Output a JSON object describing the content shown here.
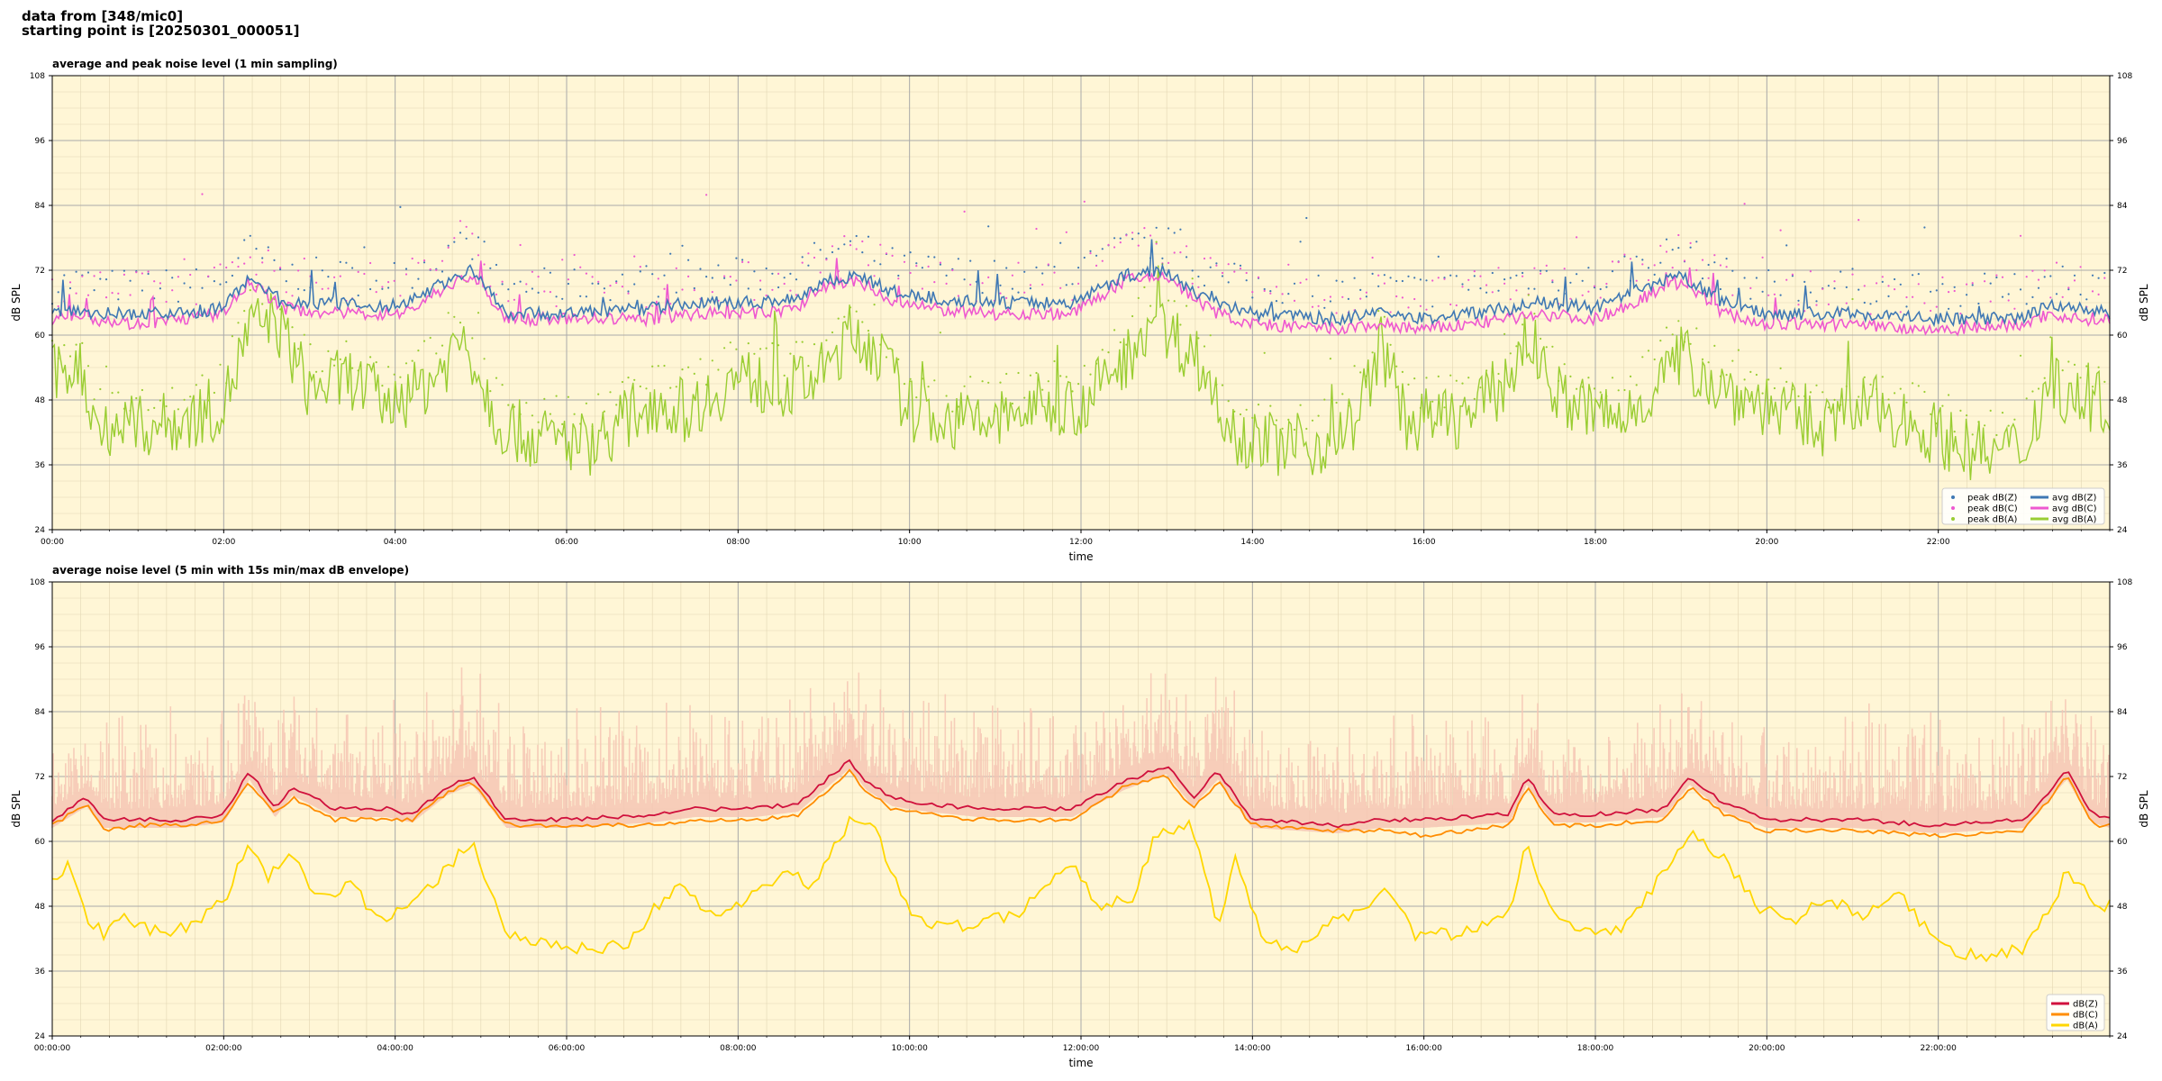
{
  "header": {
    "line1": "data from [348/mic0]",
    "line2": "starting point is [20250301_000051]"
  },
  "colors": {
    "plot_bg": "#fff6d6",
    "zline": "#3f78b4",
    "cline": "#ee58d0",
    "aline": "#9acd32",
    "z5": "#d0103c",
    "c5": "#ff8c00",
    "a5": "#ffd700",
    "envelope": "#f6c5b4"
  },
  "chart_data": [
    {
      "type": "line",
      "title": "average and peak noise level (1 min sampling)",
      "xlabel": "time",
      "ylabel": "dB SPL",
      "ylabel_right": "dB SPL",
      "xlim_hours": [
        0,
        24
      ],
      "ylim": [
        24,
        108
      ],
      "yticks": [
        24,
        36,
        48,
        60,
        72,
        84,
        96,
        108
      ],
      "xtick_labels": [
        "00:00",
        "02:00",
        "04:00",
        "06:00",
        "08:00",
        "10:00",
        "12:00",
        "14:00",
        "16:00",
        "18:00",
        "20:00",
        "22:00"
      ],
      "grid": true,
      "legend_position": "lower-right",
      "legend": [
        "peak dB(Z)",
        "peak dB(C)",
        "peak dB(A)",
        "avg dB(Z)",
        "avg dB(C)",
        "avg dB(A)"
      ],
      "series": [
        {
          "name": "avg dB(Z)",
          "x_hours": [
            0,
            0.3,
            0.5,
            1.0,
            1.5,
            2.0,
            2.3,
            2.7,
            3.3,
            3.8,
            4.1,
            4.6,
            4.9,
            5.3,
            6.0,
            7.0,
            7.5,
            8.2,
            8.7,
            9.0,
            9.4,
            9.8,
            10.2,
            10.8,
            11.5,
            11.9,
            12.5,
            13.0,
            13.3,
            13.6,
            14.0,
            15.0,
            15.5,
            16.0,
            17.0,
            17.3,
            18.0,
            19.0,
            19.5,
            20.0,
            21.0,
            22.0,
            23.0,
            23.3,
            23.6,
            24.0
          ],
          "values": [
            64,
            65,
            64,
            64,
            64,
            65,
            71,
            66,
            66,
            65,
            66,
            70,
            72,
            64,
            64,
            65,
            66,
            66,
            67,
            70,
            71,
            68,
            67,
            66,
            66,
            66,
            71,
            72,
            68,
            66,
            64,
            63,
            64,
            63,
            65,
            66,
            65,
            71,
            66,
            64,
            64,
            63,
            63,
            66,
            65,
            64
          ]
        },
        {
          "name": "avg dB(C)",
          "x_hours": [
            0,
            0.3,
            0.5,
            1.0,
            1.5,
            2.0,
            2.3,
            2.7,
            3.3,
            3.8,
            4.1,
            4.6,
            4.9,
            5.3,
            6.0,
            7.0,
            7.5,
            8.2,
            8.7,
            9.0,
            9.4,
            9.8,
            10.2,
            10.8,
            11.5,
            11.9,
            12.5,
            13.0,
            13.3,
            13.6,
            14.0,
            15.0,
            15.5,
            16.0,
            17.0,
            17.3,
            18.0,
            19.0,
            19.5,
            20.0,
            21.0,
            22.0,
            23.0,
            23.3,
            23.6,
            24.0
          ],
          "values": [
            63,
            64,
            63,
            62,
            63,
            64,
            70,
            65,
            64,
            64,
            64,
            69,
            71,
            63,
            63,
            63,
            64,
            64,
            65,
            69,
            70,
            66,
            65,
            64,
            64,
            64,
            70,
            71,
            67,
            64,
            62,
            61,
            62,
            61,
            63,
            64,
            63,
            70,
            64,
            62,
            62,
            61,
            62,
            64,
            63,
            63
          ]
        },
        {
          "name": "avg dB(A)",
          "x_hours": [
            0,
            0.3,
            0.5,
            1.0,
            1.5,
            2.0,
            2.3,
            2.6,
            3.0,
            3.5,
            4.0,
            4.5,
            4.8,
            5.2,
            5.6,
            6.3,
            7.0,
            7.4,
            8.0,
            8.6,
            9.0,
            9.3,
            9.6,
            10.0,
            10.5,
            11.0,
            11.5,
            12.0,
            12.5,
            12.8,
            13.3,
            13.8,
            14.2,
            14.7,
            15.2,
            15.5,
            15.8,
            16.5,
            17.0,
            17.2,
            17.6,
            18.3,
            19.0,
            19.5,
            20.0,
            20.6,
            21.2,
            21.8,
            22.5,
            23.0,
            23.3,
            23.6,
            24.0
          ],
          "values": [
            52,
            55,
            44,
            43,
            44,
            47,
            61,
            63,
            50,
            52,
            46,
            53,
            60,
            44,
            41,
            40,
            48,
            46,
            52,
            50,
            53,
            60,
            58,
            46,
            44,
            44,
            47,
            47,
            55,
            63,
            57,
            42,
            40,
            39,
            44,
            58,
            44,
            45,
            52,
            60,
            48,
            44,
            56,
            50,
            47,
            43,
            47,
            43,
            38,
            39,
            52,
            48,
            47
          ]
        }
      ]
    },
    {
      "type": "line",
      "title": "average noise level (5 min with 15s min/max dB envelope)",
      "xlabel": "time",
      "ylabel": "dB SPL",
      "ylabel_right": "dB SPL",
      "xlim_hours": [
        0,
        24
      ],
      "ylim": [
        24,
        108
      ],
      "yticks": [
        24,
        36,
        48,
        60,
        72,
        84,
        96,
        108
      ],
      "xtick_labels": [
        "00:00:00",
        "02:00:00",
        "04:00:00",
        "06:00:00",
        "08:00:00",
        "10:00:00",
        "12:00:00",
        "14:00:00",
        "16:00:00",
        "18:00:00",
        "20:00:00",
        "22:00:00"
      ],
      "grid": true,
      "legend_position": "lower-right",
      "legend": [
        "dB(Z)",
        "dB(C)",
        "dB(A)"
      ],
      "series": [
        {
          "name": "dB(Z)",
          "x_hours": [
            0,
            0.4,
            0.6,
            1.0,
            1.5,
            2.0,
            2.3,
            2.6,
            2.8,
            3.3,
            3.9,
            4.2,
            4.6,
            4.9,
            5.3,
            6.0,
            7.0,
            7.5,
            8.2,
            8.7,
            9.0,
            9.3,
            9.5,
            9.8,
            10.2,
            10.8,
            11.5,
            11.9,
            12.5,
            13.0,
            13.3,
            13.6,
            14.0,
            15.0,
            15.5,
            16.0,
            17.0,
            17.2,
            17.5,
            18.0,
            18.8,
            19.1,
            19.5,
            20.0,
            21.0,
            22.0,
            23.0,
            23.5,
            23.8,
            24.0
          ],
          "values": [
            64,
            68,
            64,
            64,
            64,
            65,
            73,
            66,
            70,
            66,
            66,
            65,
            70,
            72,
            64,
            64,
            65,
            66,
            66,
            67,
            71,
            75,
            71,
            68,
            67,
            66,
            66,
            66,
            71,
            74,
            68,
            73,
            64,
            63,
            64,
            64,
            65,
            72,
            65,
            65,
            66,
            72,
            67,
            64,
            64,
            63,
            64,
            73,
            65,
            64
          ]
        },
        {
          "name": "dB(C)",
          "x_hours": [
            0,
            0.4,
            0.6,
            1.0,
            1.5,
            2.0,
            2.3,
            2.6,
            2.8,
            3.3,
            3.9,
            4.2,
            4.6,
            4.9,
            5.3,
            6.0,
            7.0,
            7.5,
            8.2,
            8.7,
            9.0,
            9.3,
            9.5,
            9.8,
            10.2,
            10.8,
            11.5,
            11.9,
            12.5,
            13.0,
            13.3,
            13.6,
            14.0,
            15.0,
            15.5,
            16.0,
            17.0,
            17.2,
            17.5,
            18.0,
            18.8,
            19.1,
            19.5,
            20.0,
            21.0,
            22.0,
            23.0,
            23.5,
            23.8,
            24.0
          ],
          "values": [
            63,
            67,
            62,
            63,
            63,
            64,
            71,
            65,
            68,
            64,
            64,
            64,
            69,
            71,
            63,
            63,
            63,
            64,
            64,
            65,
            69,
            73,
            69,
            66,
            65,
            64,
            64,
            64,
            70,
            72,
            66,
            71,
            63,
            62,
            62,
            61,
            63,
            70,
            63,
            63,
            64,
            70,
            65,
            62,
            62,
            61,
            62,
            72,
            63,
            63
          ]
        },
        {
          "name": "dB(A)",
          "x_hours": [
            0,
            0.2,
            0.4,
            0.6,
            0.8,
            1.0,
            1.3,
            1.6,
            2.0,
            2.3,
            2.5,
            2.8,
            3.1,
            3.5,
            3.8,
            4.2,
            4.6,
            4.9,
            5.3,
            5.7,
            6.2,
            6.7,
            7.0,
            7.3,
            7.7,
            8.1,
            8.5,
            8.9,
            9.3,
            9.6,
            10.0,
            10.4,
            10.8,
            11.2,
            11.6,
            11.9,
            12.2,
            12.6,
            12.9,
            13.3,
            13.6,
            13.8,
            14.1,
            14.5,
            14.9,
            15.3,
            15.6,
            15.9,
            16.4,
            17.0,
            17.2,
            17.5,
            17.9,
            18.3,
            18.7,
            19.1,
            19.5,
            19.9,
            20.3,
            20.7,
            21.1,
            21.5,
            21.9,
            22.3,
            22.7,
            23.0,
            23.3,
            23.5,
            23.8,
            24.0
          ],
          "values": [
            52,
            56,
            45,
            43,
            47,
            44,
            43,
            44,
            49,
            60,
            53,
            58,
            49,
            53,
            45,
            48,
            55,
            60,
            43,
            41,
            40,
            41,
            47,
            52,
            46,
            49,
            54,
            52,
            64,
            62,
            47,
            44,
            45,
            46,
            52,
            56,
            48,
            50,
            62,
            63,
            44,
            58,
            42,
            40,
            45,
            47,
            51,
            43,
            43,
            47,
            60,
            46,
            44,
            43,
            52,
            62,
            57,
            48,
            45,
            50,
            46,
            51,
            43,
            39,
            39,
            40,
            47,
            55,
            49,
            48
          ]
        }
      ]
    }
  ]
}
